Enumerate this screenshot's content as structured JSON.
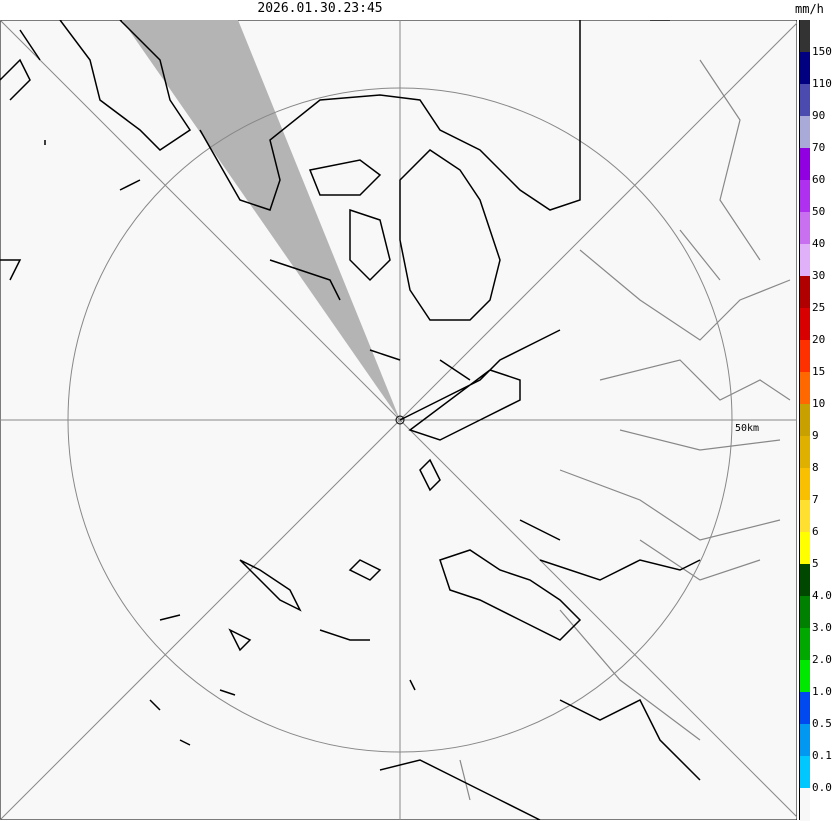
{
  "timestamp": "2026.01.30.23:45",
  "unit": "mm/h",
  "range_ring_label": "50km",
  "map": {
    "background": "#f8f8f8",
    "no_data_wedge_color": "#b4b4b4"
  },
  "legend": {
    "colors": [
      "#333333",
      "#000080",
      "#4b4baf",
      "#aaaad8",
      "#9000e0",
      "#b030f0",
      "#c870f0",
      "#e0b0f8",
      "#b00000",
      "#d80000",
      "#ff3000",
      "#ff6800",
      "#c8a000",
      "#e0b000",
      "#f8c000",
      "#ffe030",
      "#ffff00",
      "#004800",
      "#008000",
      "#00a800",
      "#00e800",
      "#0048f0",
      "#0098f0",
      "#00c8ff",
      "#f8f8f8"
    ],
    "labels": [
      "150",
      "110",
      "90",
      "70",
      "60",
      "50",
      "40",
      "30",
      "25",
      "20",
      "15",
      "10",
      "9",
      "8",
      "7",
      "6",
      "5",
      "4.0",
      "3.0",
      "2.0",
      "1.0",
      "0.5",
      "0.1",
      "0.0"
    ]
  }
}
